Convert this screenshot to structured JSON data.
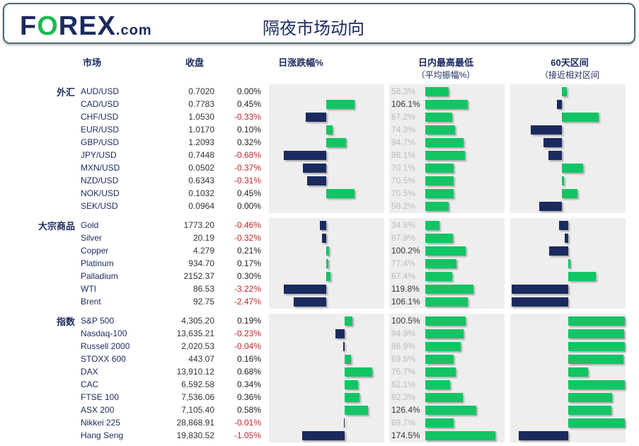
{
  "header": {
    "logo": "FOREX.com",
    "title": "隔夜市场动向"
  },
  "columns": {
    "market": "市场",
    "close": "收盘",
    "change": "日涨跌幅%",
    "range": "日内最高最低",
    "range_sub": "（平均振幅%）",
    "sixty": "60天区间",
    "sixty_sub": "（接近相对区间"
  },
  "colors": {
    "up": "#12c464",
    "down": "#1b2a5e",
    "negative_text": "#c0282e"
  },
  "sections": [
    {
      "label": "外汇",
      "rows": [
        {
          "name": "AUD/USD",
          "close": "0.7020",
          "change": "0.00%",
          "chg": 0.0,
          "range": "58.3%",
          "rng": 58.3,
          "pos": 0.09
        },
        {
          "name": "CAD/USD",
          "close": "0.7783",
          "change": "0.45%",
          "chg": 0.45,
          "range": "106.1%",
          "rng": 106.1,
          "pos": -0.09
        },
        {
          "name": "CHF/USD",
          "close": "1.0530",
          "change": "-0.33%",
          "chg": -0.33,
          "range": "67.2%",
          "rng": 67.2,
          "pos": 0.65
        },
        {
          "name": "EUR/USD",
          "close": "1.0170",
          "change": "0.10%",
          "chg": 0.1,
          "range": "74.3%",
          "rng": 74.3,
          "pos": -0.55
        },
        {
          "name": "GBP/USD",
          "close": "1.2093",
          "change": "0.32%",
          "chg": 0.32,
          "range": "94.7%",
          "rng": 94.7,
          "pos": -0.33
        },
        {
          "name": "JPY/USD",
          "close": "0.7448",
          "change": "-0.68%",
          "chg": -0.68,
          "range": "98.1%",
          "rng": 98.1,
          "pos": -0.24
        },
        {
          "name": "MXN/USD",
          "close": "0.0502",
          "change": "-0.37%",
          "chg": -0.37,
          "range": "70.1%",
          "rng": 70.1,
          "pos": 0.38
        },
        {
          "name": "NZD/USD",
          "close": "0.6343",
          "change": "-0.31%",
          "chg": -0.31,
          "range": "70.5%",
          "rng": 70.5,
          "pos": 0.04
        },
        {
          "name": "NOK/USD",
          "close": "0.1032",
          "change": "0.45%",
          "chg": 0.45,
          "range": "70.5%",
          "rng": 70.5,
          "pos": 0.28
        },
        {
          "name": "SEK/USD",
          "close": "0.0964",
          "change": "0.00%",
          "chg": 0.0,
          "range": "58.2%",
          "rng": 58.2,
          "pos": -0.4
        }
      ]
    },
    {
      "label": "大宗商品",
      "rows": [
        {
          "name": "Gold",
          "close": "1773.20",
          "change": "-0.46%",
          "chg": -0.46,
          "range": "34.8%",
          "rng": 34.8,
          "pos": -0.16
        },
        {
          "name": "Silver",
          "close": "20.19",
          "change": "-0.32%",
          "chg": -0.32,
          "range": "67.9%",
          "rng": 67.9,
          "pos": -0.06
        },
        {
          "name": "Copper",
          "close": "4.279",
          "change": "0.21%",
          "chg": 0.21,
          "range": "100.2%",
          "rng": 100.2,
          "pos": -0.34
        },
        {
          "name": "Platinum",
          "close": "934.70",
          "change": "0.17%",
          "chg": 0.17,
          "range": "77.4%",
          "rng": 77.4,
          "pos": 0.04
        },
        {
          "name": "Palladium",
          "close": "2152.37",
          "change": "0.30%",
          "chg": 0.3,
          "range": "67.4%",
          "rng": 67.4,
          "pos": 0.49
        },
        {
          "name": "WTI",
          "close": "86.53",
          "change": "-3.22%",
          "chg": -3.22,
          "range": "119.8%",
          "rng": 119.8,
          "pos": -1
        },
        {
          "name": "Brent",
          "close": "92.75",
          "change": "-2.47%",
          "chg": -2.47,
          "range": "106.1%",
          "rng": 106.1,
          "pos": -1
        }
      ]
    },
    {
      "label": "指数",
      "rows": [
        {
          "name": "S&P 500",
          "close": "4,305.20",
          "change": "0.19%",
          "chg": 0.19,
          "range": "100.5%",
          "rng": 100.5,
          "pos": 1
        },
        {
          "name": "Nasdaq-100",
          "close": "13,635.21",
          "change": "-0.23%",
          "chg": -0.23,
          "range": "94.9%",
          "rng": 94.9,
          "pos": 0.99
        },
        {
          "name": "Russell 2000",
          "close": "2,020.53",
          "change": "-0.04%",
          "chg": -0.04,
          "range": "86.9%",
          "rng": 86.9,
          "pos": 1
        },
        {
          "name": "STOXX 600",
          "close": "443.07",
          "change": "0.16%",
          "chg": 0.16,
          "range": "69.5%",
          "rng": 69.5,
          "pos": 0.97
        },
        {
          "name": "DAX",
          "close": "13,910.12",
          "change": "0.68%",
          "chg": 0.68,
          "range": "75.7%",
          "rng": 75.7,
          "pos": 0.35
        },
        {
          "name": "CAC",
          "close": "6,592.58",
          "change": "0.34%",
          "chg": 0.34,
          "range": "62.1%",
          "rng": 62.1,
          "pos": 1
        },
        {
          "name": "FTSE 100",
          "close": "7,536.06",
          "change": "0.36%",
          "chg": 0.36,
          "range": "92.3%",
          "rng": 92.3,
          "pos": 0.77
        },
        {
          "name": "ASX 200",
          "close": "7,105.40",
          "change": "0.58%",
          "chg": 0.58,
          "range": "126.4%",
          "rng": 126.4,
          "pos": 0.76
        },
        {
          "name": "Nikkei 225",
          "close": "28,868.91",
          "change": "-0.01%",
          "chg": -0.01,
          "range": "69.7%",
          "rng": 69.7,
          "pos": 1
        },
        {
          "name": "Hang Seng",
          "close": "19,830.52",
          "change": "-1.05%",
          "chg": -1.05,
          "range": "174.5%",
          "rng": 174.5,
          "pos": -0.87
        }
      ]
    }
  ]
}
